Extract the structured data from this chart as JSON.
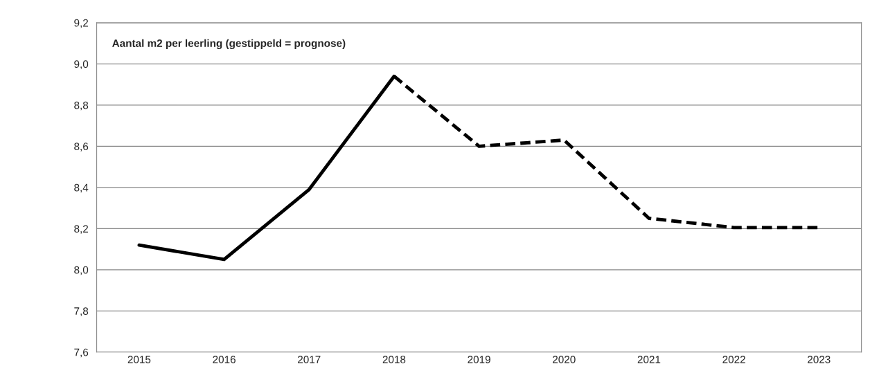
{
  "chart_data": {
    "type": "line",
    "title": "Aantal m2 per leerling (gestippeld = prognose)",
    "categories": [
      "2015",
      "2016",
      "2017",
      "2018",
      "2019",
      "2020",
      "2021",
      "2022",
      "2023"
    ],
    "series": [
      {
        "color": "#000000",
        "line_style": "solid",
        "values": [
          8.12,
          8.05,
          8.39,
          8.94,
          null,
          null,
          null,
          null,
          null
        ]
      },
      {
        "color": "#000000",
        "line_style": "dashed",
        "values": [
          null,
          null,
          null,
          8.94,
          8.6,
          8.63,
          8.25,
          8.205,
          8.205
        ]
      }
    ],
    "ylim": [
      7.6,
      9.2
    ],
    "yticks": [
      {
        "value": 7.6,
        "label": "7,6"
      },
      {
        "value": 7.8,
        "label": "7,8"
      },
      {
        "value": 8.0,
        "label": "8,0"
      },
      {
        "value": 8.2,
        "label": "8,2"
      },
      {
        "value": 8.4,
        "label": "8,4"
      },
      {
        "value": 8.6,
        "label": "8,6"
      },
      {
        "value": 8.8,
        "label": "8,8"
      },
      {
        "value": 9.0,
        "label": "9,0"
      },
      {
        "value": 9.2,
        "label": "9,2"
      }
    ],
    "grid": "y",
    "marker": "none"
  }
}
